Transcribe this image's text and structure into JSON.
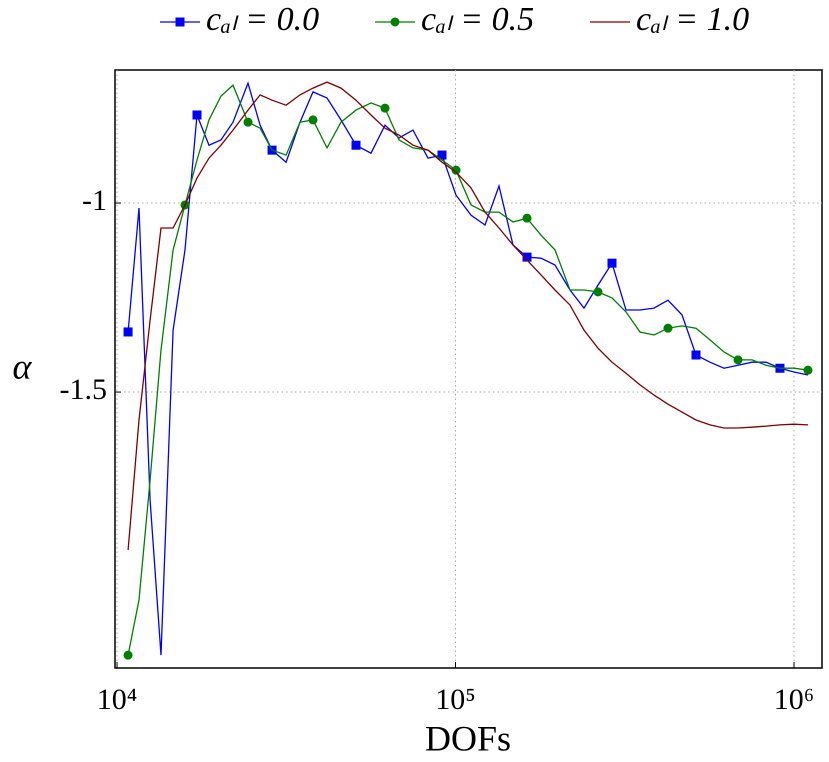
{
  "chart_data": {
    "type": "line",
    "x_label": "DOFs",
    "y_label": "α",
    "x_log": true,
    "grid": true,
    "legend": "top",
    "xlim": [
      9863,
      1210000
    ],
    "ylim": [
      -2.23,
      -0.648
    ],
    "xticks": [
      {
        "value": 10000,
        "label": "10⁴"
      },
      {
        "value": 100000,
        "label": "10⁵"
      },
      {
        "value": 1000000,
        "label": "10⁶"
      }
    ],
    "yticks": [
      -1,
      -1.5
    ],
    "x": [
      10780,
      11610,
      12520,
      13490,
      14640,
      15880,
      17230,
      18700,
      20290,
      22010,
      24380,
      26460,
      28710,
      31580,
      34720,
      37930,
      41730,
      45880,
      50820,
      56280,
      61910,
      68090,
      74890,
      82950,
      91230,
      100350,
      111130,
      122230,
      134440,
      147880,
      162650,
      178890,
      196780,
      217930,
      239660,
      263630,
      289970,
      318940,
      350750,
      385830,
      424410,
      466740,
      513450,
      564720,
      621160,
      683300,
      751450,
      826600,
      908990,
      1000000,
      1099800
    ],
    "series": [
      {
        "name": "cₐₗ = 0.0",
        "color": "#0000ff",
        "marker": "square",
        "values": [
          -1.341,
          -1.013,
          -1.786,
          -2.196,
          -1.336,
          -1.124,
          -0.767,
          -0.847,
          -0.833,
          -0.786,
          -0.683,
          -0.794,
          -0.86,
          -0.892,
          -0.786,
          -0.706,
          -0.722,
          -0.78,
          -0.847,
          -0.868,
          -0.794,
          -0.828,
          -0.807,
          -0.881,
          -0.873,
          -0.979,
          -1.032,
          -1.058,
          -0.955,
          -1.111,
          -1.143,
          -1.146,
          -1.164,
          -1.23,
          -1.278,
          -1.217,
          -1.159,
          -1.283,
          -1.283,
          -1.278,
          -1.257,
          -1.296,
          -1.402,
          -1.421,
          -1.437,
          -1.429,
          -1.421,
          -1.421,
          -1.437,
          -1.447,
          -1.455
        ]
      },
      {
        "name": "cₐₗ = 0.5",
        "color": "#007f00",
        "marker": "circle",
        "values": [
          -2.196,
          -2.05,
          -1.733,
          -1.389,
          -1.124,
          -1.005,
          -0.886,
          -0.78,
          -0.717,
          -0.688,
          -0.786,
          -0.802,
          -0.86,
          -0.873,
          -0.786,
          -0.78,
          -0.854,
          -0.786,
          -0.754,
          -0.735,
          -0.749,
          -0.833,
          -0.854,
          -0.86,
          -0.886,
          -0.913,
          -1.005,
          -1.024,
          -1.024,
          -1.05,
          -1.04,
          -1.085,
          -1.124,
          -1.23,
          -1.23,
          -1.235,
          -1.251,
          -1.288,
          -1.341,
          -1.349,
          -1.331,
          -1.325,
          -1.331,
          -1.362,
          -1.394,
          -1.415,
          -1.415,
          -1.429,
          -1.437,
          -1.437,
          -1.442
        ]
      },
      {
        "name": "cₐₗ = 1.0",
        "color": "#7f0000",
        "marker": "none",
        "values": [
          -1.918,
          -1.574,
          -1.31,
          -1.066,
          -1.066,
          -1.005,
          -0.934,
          -0.881,
          -0.847,
          -0.807,
          -0.754,
          -0.714,
          -0.728,
          -0.741,
          -0.714,
          -0.696,
          -0.68,
          -0.696,
          -0.728,
          -0.767,
          -0.802,
          -0.82,
          -0.847,
          -0.86,
          -0.892,
          -0.918,
          -0.96,
          -1.024,
          -1.066,
          -1.111,
          -1.151,
          -1.19,
          -1.23,
          -1.27,
          -1.336,
          -1.384,
          -1.421,
          -1.45,
          -1.481,
          -1.508,
          -1.532,
          -1.553,
          -1.574,
          -1.587,
          -1.595,
          -1.595,
          -1.593,
          -1.59,
          -1.587,
          -1.585,
          -1.587
        ]
      }
    ]
  }
}
